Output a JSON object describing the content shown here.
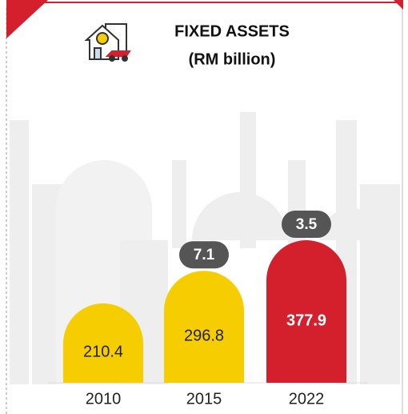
{
  "chart_data": {
    "type": "bar",
    "title": "FIXED ASSETS",
    "subtitle": "(RM billion)",
    "categories": [
      "2010",
      "2015",
      "2022"
    ],
    "values": [
      210.4,
      296.8,
      377.9
    ],
    "colors": [
      "#f5cd00",
      "#f5cd00",
      "#d4202c"
    ],
    "value_label_colors": [
      "#222222",
      "#222222",
      "#ffffff"
    ],
    "badges": [
      null,
      7.1,
      3.5
    ],
    "badge_color": "#555555"
  }
}
